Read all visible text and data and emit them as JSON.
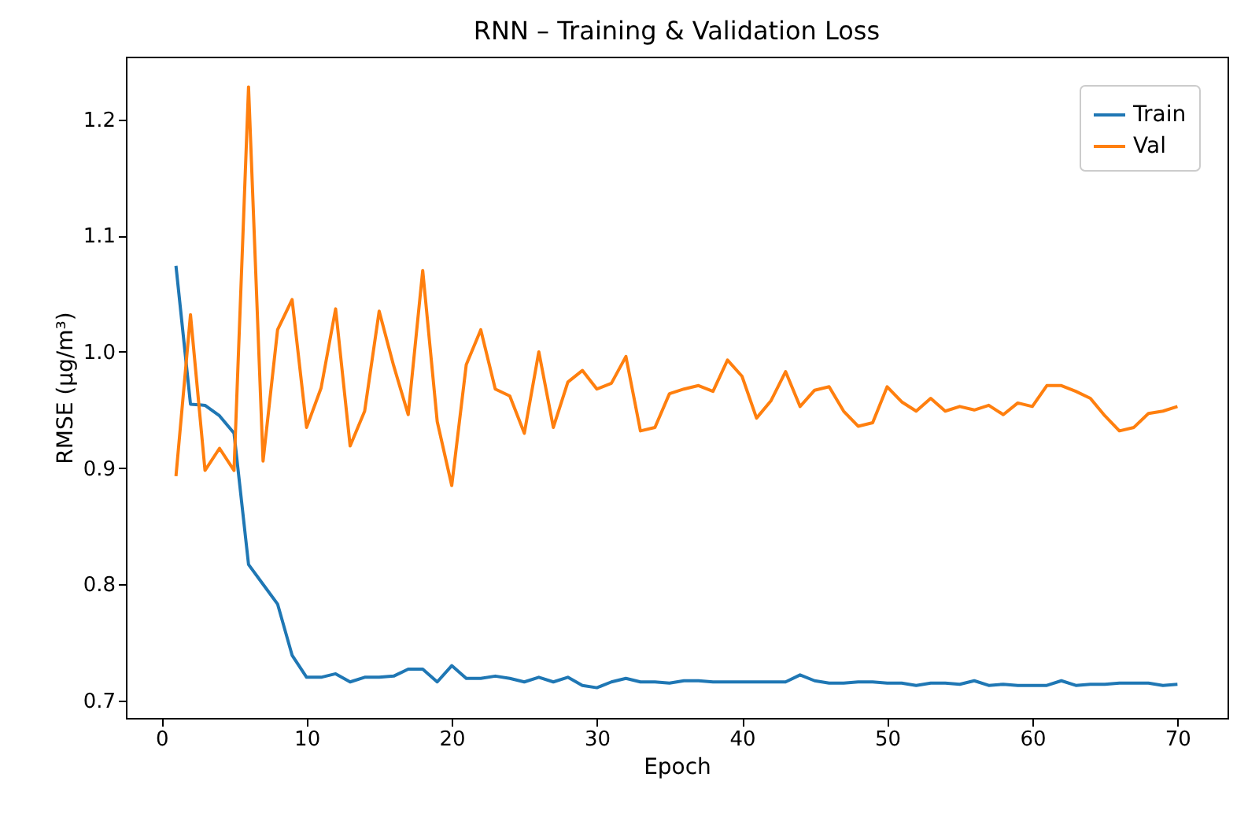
{
  "chart_data": {
    "type": "line",
    "title": "RNN – Training & Validation Loss",
    "xlabel": "Epoch",
    "ylabel": "RMSE (µg/m³)",
    "x": [
      1,
      2,
      3,
      4,
      5,
      6,
      7,
      8,
      9,
      10,
      11,
      12,
      13,
      14,
      15,
      16,
      17,
      18,
      19,
      20,
      21,
      22,
      23,
      24,
      25,
      26,
      27,
      28,
      29,
      30,
      31,
      32,
      33,
      34,
      35,
      36,
      37,
      38,
      39,
      40,
      41,
      42,
      43,
      44,
      45,
      46,
      47,
      48,
      49,
      50,
      51,
      52,
      53,
      54,
      55,
      56,
      57,
      58,
      59,
      60,
      61,
      62,
      63,
      64,
      65,
      66,
      67,
      68,
      69,
      70
    ],
    "series": [
      {
        "name": "Train",
        "color": "#1f77b4",
        "values": [
          1.074,
          0.955,
          0.954,
          0.945,
          0.93,
          0.817,
          0.8,
          0.783,
          0.739,
          0.72,
          0.72,
          0.723,
          0.716,
          0.72,
          0.72,
          0.721,
          0.727,
          0.727,
          0.716,
          0.73,
          0.719,
          0.719,
          0.721,
          0.719,
          0.716,
          0.72,
          0.716,
          0.72,
          0.713,
          0.711,
          0.716,
          0.719,
          0.716,
          0.716,
          0.715,
          0.717,
          0.717,
          0.716,
          0.716,
          0.716,
          0.716,
          0.716,
          0.716,
          0.722,
          0.717,
          0.715,
          0.715,
          0.716,
          0.716,
          0.715,
          0.715,
          0.713,
          0.715,
          0.715,
          0.714,
          0.717,
          0.713,
          0.714,
          0.713,
          0.713,
          0.713,
          0.717,
          0.713,
          0.714,
          0.714,
          0.715,
          0.715,
          0.715,
          0.713,
          0.714
        ]
      },
      {
        "name": "Val",
        "color": "#ff7f0e",
        "values": [
          0.893,
          1.032,
          0.898,
          0.917,
          0.898,
          1.228,
          0.906,
          1.019,
          1.045,
          0.935,
          0.969,
          1.037,
          0.919,
          0.949,
          1.035,
          0.988,
          0.946,
          1.07,
          0.94,
          0.885,
          0.989,
          1.019,
          0.968,
          0.962,
          0.93,
          1.0,
          0.935,
          0.974,
          0.984,
          0.968,
          0.973,
          0.996,
          0.932,
          0.935,
          0.964,
          0.968,
          0.971,
          0.966,
          0.993,
          0.979,
          0.943,
          0.958,
          0.983,
          0.953,
          0.967,
          0.97,
          0.949,
          0.936,
          0.939,
          0.97,
          0.957,
          0.949,
          0.96,
          0.949,
          0.953,
          0.95,
          0.954,
          0.946,
          0.956,
          0.953,
          0.971,
          0.971,
          0.966,
          0.96,
          0.945,
          0.932,
          0.935,
          0.947,
          0.949,
          0.953
        ]
      }
    ],
    "xlim": [
      -2.45,
      73.45
    ],
    "xticks": [
      0,
      10,
      20,
      30,
      40,
      50,
      60,
      70
    ],
    "ylim": [
      0.685,
      1.254
    ],
    "yticks": [
      0.7,
      0.8,
      0.9,
      {
        "value": 1,
        "label": "1.0"
      },
      1.1,
      1.2
    ],
    "grid": false,
    "legend": "top right",
    "marker": "none",
    "line_style": "solid"
  }
}
